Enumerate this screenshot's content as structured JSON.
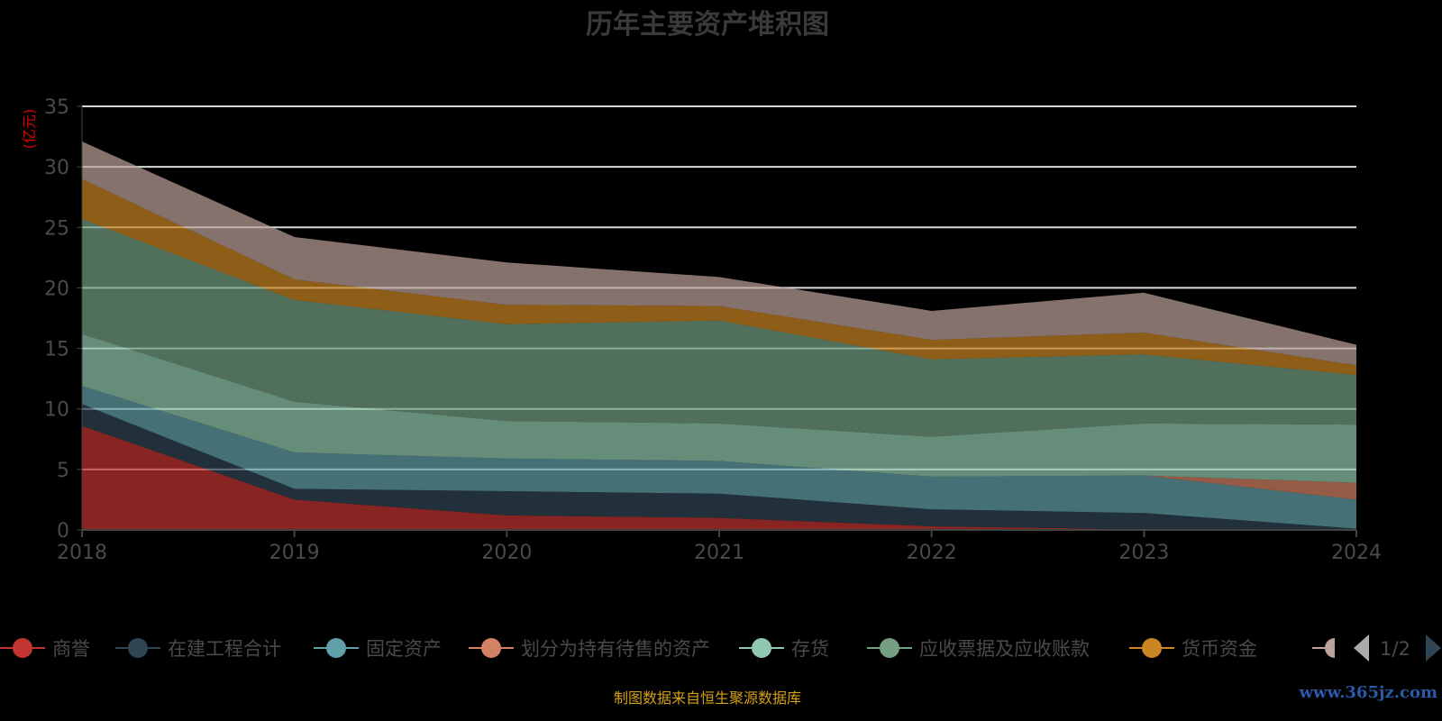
{
  "chart_data": {
    "type": "area",
    "stacked": true,
    "title": "历年主要资产堆积图",
    "ylabel": "(亿元)",
    "xlabel": "",
    "ylim": [
      0,
      35
    ],
    "yticks": [
      0,
      5,
      10,
      15,
      20,
      25,
      30,
      35
    ],
    "grid": true,
    "categories": [
      "2018",
      "2019",
      "2020",
      "2021",
      "2022",
      "2023",
      "2024"
    ],
    "series": [
      {
        "name": "商誉",
        "color": "#c23531",
        "values": [
          8.6,
          2.5,
          1.2,
          1.0,
          0.3,
          0.05,
          0.0
        ]
      },
      {
        "name": "在建工程合计",
        "color": "#2f4554",
        "values": [
          1.8,
          0.9,
          2.0,
          2.0,
          1.4,
          1.35,
          0.1
        ]
      },
      {
        "name": "固定资产",
        "color": "#61a0a8",
        "values": [
          1.5,
          3.0,
          2.7,
          2.7,
          2.7,
          3.1,
          2.4
        ]
      },
      {
        "name": "划分为持有待售的资产",
        "color": "#d48265",
        "values": [
          0,
          0,
          0,
          0,
          0,
          0,
          1.4
        ]
      },
      {
        "name": "存货",
        "color": "#91c7ae",
        "values": [
          4.3,
          4.2,
          3.1,
          3.1,
          3.3,
          4.3,
          4.8
        ]
      },
      {
        "name": "应收票据及应收账款",
        "color": "#749f83",
        "values": [
          9.5,
          8.4,
          8.0,
          8.5,
          6.4,
          5.7,
          4.1
        ]
      },
      {
        "name": "货币资金",
        "color": "#ca8622",
        "values": [
          3.3,
          1.7,
          1.6,
          1.2,
          1.6,
          1.8,
          0.8
        ]
      },
      {
        "name": "",
        "color": "#bda29a",
        "values": [
          3.1,
          3.5,
          3.5,
          2.4,
          2.4,
          3.3,
          1.7
        ]
      }
    ],
    "legend": {
      "position": "bottom",
      "page": "1/2"
    }
  },
  "source_note": "制图数据来自恒生聚源数据库",
  "watermark": "www.365jz.com"
}
